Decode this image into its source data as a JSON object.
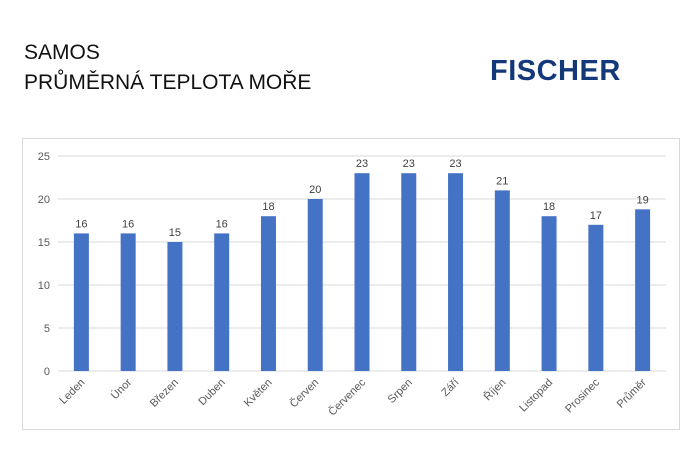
{
  "header": {
    "title_line1": "SAMOS",
    "title_line2": "PRŮMĚRNÁ TEPLOTA MOŘE",
    "logo_text": "FISCHER"
  },
  "colors": {
    "bar": "#4472c4",
    "logo": "#14397a",
    "grid": "#d9d9d9"
  },
  "chart_data": {
    "type": "bar",
    "categories": [
      "Leden",
      "Únor",
      "Březen",
      "Duben",
      "Květen",
      "Červen",
      "Červenec",
      "Srpen",
      "Září",
      "Říjen",
      "Listopad",
      "Prosinec",
      "Průměr"
    ],
    "values": [
      16,
      16,
      15,
      16,
      18,
      20,
      23,
      23,
      23,
      21,
      18,
      17,
      18.8
    ],
    "data_labels": [
      "16",
      "16",
      "15",
      "16",
      "18",
      "20",
      "23",
      "23",
      "23",
      "21",
      "18",
      "17",
      "19"
    ],
    "yticks": [
      0,
      5,
      10,
      15,
      20,
      25
    ],
    "ylim": [
      0,
      25
    ],
    "grid": true,
    "legend": "none",
    "xlabel": "",
    "ylabel": ""
  }
}
